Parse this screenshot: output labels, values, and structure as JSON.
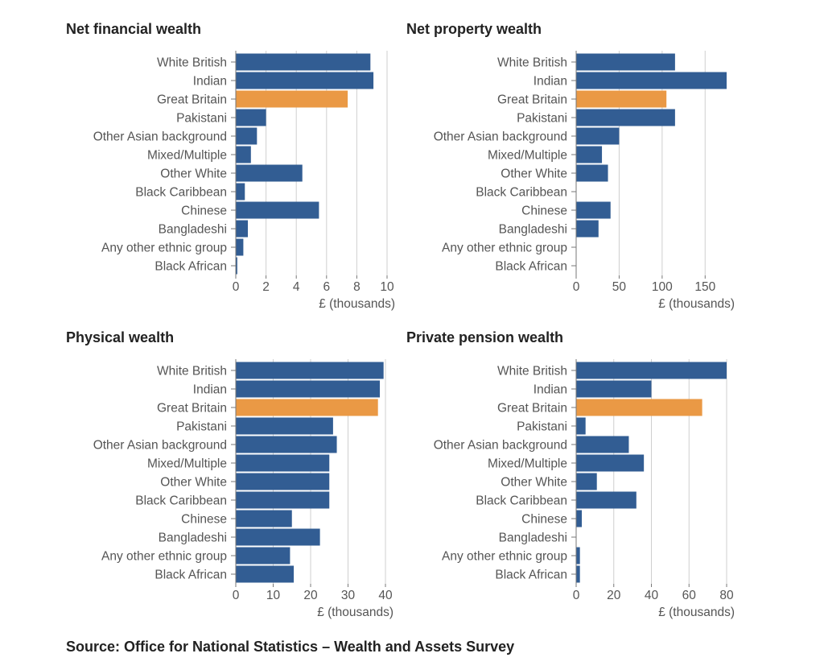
{
  "colors": {
    "bar": "#325d93",
    "highlight": "#ea9945"
  },
  "source": "Source: Office for National Statistics – Wealth and Assets Survey",
  "chart_data": [
    {
      "type": "bar",
      "orientation": "horizontal",
      "title": "Net financial wealth",
      "xlabel": "£ (thousands)",
      "xlim": [
        0,
        10
      ],
      "ticks": [
        0,
        2,
        4,
        6,
        8,
        10
      ],
      "highlight": "Great Britain",
      "categories": [
        "White British",
        "Indian",
        "Great Britain",
        "Pakistani",
        "Other Asian background",
        "Mixed/Multiple",
        "Other White",
        "Black Caribbean",
        "Chinese",
        "Bangladeshi",
        "Any other ethnic group",
        "Black African"
      ],
      "values": [
        8.9,
        9.1,
        7.4,
        2.0,
        1.4,
        1.0,
        4.4,
        0.6,
        5.5,
        0.8,
        0.5,
        0.1
      ]
    },
    {
      "type": "bar",
      "orientation": "horizontal",
      "title": "Net property wealth",
      "xlabel": "£ (thousands)",
      "xlim": [
        0,
        175
      ],
      "ticks": [
        0,
        50,
        100,
        150
      ],
      "highlight": "Great Britain",
      "categories": [
        "White British",
        "Indian",
        "Great Britain",
        "Pakistani",
        "Other Asian background",
        "Mixed/Multiple",
        "Other White",
        "Black Caribbean",
        "Chinese",
        "Bangladeshi",
        "Any other ethnic group",
        "Black African"
      ],
      "values": [
        115,
        175,
        105,
        115,
        50,
        30,
        37,
        0,
        40,
        26,
        0,
        0
      ]
    },
    {
      "type": "bar",
      "orientation": "horizontal",
      "title": "Physical wealth",
      "xlabel": "£ (thousands)",
      "xlim": [
        0,
        40
      ],
      "ticks": [
        0,
        10,
        20,
        30,
        40
      ],
      "highlight": "Great Britain",
      "categories": [
        "White British",
        "Indian",
        "Great Britain",
        "Pakistani",
        "Other Asian background",
        "Mixed/Multiple",
        "Other White",
        "Black Caribbean",
        "Chinese",
        "Bangladeshi",
        "Any other ethnic group",
        "Black African"
      ],
      "values": [
        39.5,
        38.5,
        38,
        26,
        27,
        25,
        25,
        25,
        15,
        22.5,
        14.5,
        15.5
      ]
    },
    {
      "type": "bar",
      "orientation": "horizontal",
      "title": "Private pension wealth",
      "xlabel": "£ (thousands)",
      "xlim": [
        0,
        80
      ],
      "ticks": [
        0,
        20,
        40,
        60,
        80
      ],
      "highlight": "Great Britain",
      "categories": [
        "White British",
        "Indian",
        "Great Britain",
        "Pakistani",
        "Other Asian background",
        "Mixed/Multiple",
        "Other White",
        "Black Caribbean",
        "Chinese",
        "Bangladeshi",
        "Any other ethnic group",
        "Black African"
      ],
      "values": [
        80,
        40,
        67,
        5,
        28,
        36,
        11,
        32,
        3,
        0,
        2,
        2
      ]
    }
  ]
}
